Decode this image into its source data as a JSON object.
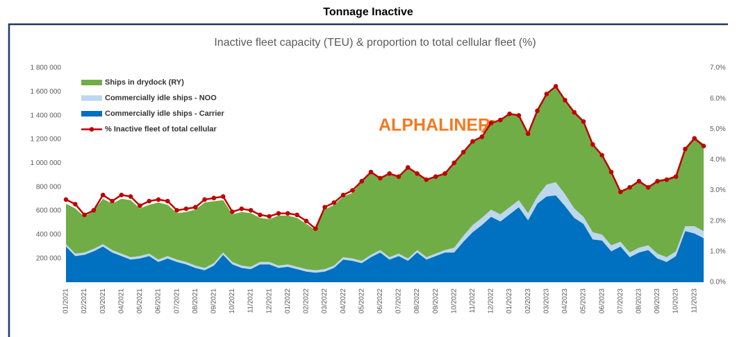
{
  "chart_data": {
    "type": "stacked-area-line",
    "header": "Tonnage Inactive",
    "title": "Inactive fleet capacity (TEU) & proportion to total cellular fleet (%)",
    "logo": "ALPHALINER",
    "categories": [
      "01/2021",
      null,
      "02/2021",
      null,
      "03/2021",
      null,
      "04/2021",
      null,
      "05/2021",
      null,
      "06/2021",
      null,
      "07/2021",
      null,
      "08/2021",
      null,
      "09/2021",
      null,
      "10/2021",
      null,
      "11/2021",
      null,
      "12/2021",
      null,
      "01/2022",
      null,
      "02/2022",
      null,
      "03/2022",
      null,
      "04/2022",
      null,
      "05/2022",
      null,
      "06/2022",
      null,
      "07/2022",
      null,
      "08/2022",
      null,
      "09/2022",
      null,
      "10/2022",
      null,
      "11/2022",
      null,
      "12/2022",
      null,
      "01/2023",
      null,
      "02/2023",
      null,
      "03/2023",
      null,
      "04/2023",
      null,
      "05/2023",
      null,
      "06/2023",
      null,
      "07/2023",
      null,
      "08/2023",
      null,
      "09/2023",
      null,
      "10/2023",
      null,
      "11/2023",
      null
    ],
    "series": [
      {
        "name": "Ships in drydock (RY)",
        "color": "#70ad47",
        "kind": "area",
        "values": [
          340000,
          380000,
          300000,
          320000,
          380000,
          390000,
          460000,
          480000,
          400000,
          410000,
          480000,
          430000,
          390000,
          420000,
          470000,
          550000,
          520000,
          440000,
          400000,
          450000,
          450000,
          370000,
          360000,
          420000,
          410000,
          410000,
          380000,
          340000,
          500000,
          510000,
          510000,
          550000,
          670000,
          690000,
          600000,
          710000,
          650000,
          760000,
          650000,
          660000,
          650000,
          650000,
          710000,
          700000,
          710000,
          690000,
          740000,
          790000,
          790000,
          720000,
          680000,
          740000,
          770000,
          810000,
          800000,
          820000,
          810000,
          740000,
          670000,
          620000,
          430000,
          550000,
          570000,
          490000,
          620000,
          660000,
          640000,
          660000,
          750000,
          730000
        ]
      },
      {
        "name": "Commercially idle ships - NOO",
        "color": "#bdd7ee",
        "kind": "area",
        "values": [
          20000,
          20000,
          20000,
          20000,
          20000,
          20000,
          20000,
          20000,
          20000,
          20000,
          20000,
          20000,
          20000,
          20000,
          20000,
          20000,
          20000,
          20000,
          20000,
          20000,
          20000,
          20000,
          20000,
          20000,
          20000,
          20000,
          20000,
          20000,
          20000,
          20000,
          20000,
          20000,
          20000,
          20000,
          20000,
          20000,
          20000,
          20000,
          20000,
          20000,
          20000,
          20000,
          40000,
          50000,
          60000,
          60000,
          60000,
          60000,
          60000,
          60000,
          60000,
          60000,
          100000,
          110000,
          100000,
          80000,
          60000,
          60000,
          50000,
          50000,
          40000,
          40000,
          40000,
          40000,
          40000,
          40000,
          40000,
          40000,
          60000,
          60000
        ]
      },
      {
        "name": "Commercially idle ships - Carrier",
        "color": "#0070c0",
        "kind": "area",
        "values": [
          300000,
          220000,
          230000,
          260000,
          300000,
          250000,
          220000,
          190000,
          200000,
          220000,
          170000,
          200000,
          170000,
          150000,
          120000,
          100000,
          140000,
          230000,
          150000,
          120000,
          110000,
          150000,
          150000,
          120000,
          130000,
          110000,
          90000,
          80000,
          90000,
          120000,
          190000,
          180000,
          160000,
          210000,
          250000,
          190000,
          220000,
          180000,
          250000,
          190000,
          220000,
          250000,
          250000,
          340000,
          420000,
          480000,
          550000,
          510000,
          570000,
          630000,
          520000,
          660000,
          720000,
          730000,
          640000,
          540000,
          490000,
          360000,
          350000,
          260000,
          300000,
          210000,
          250000,
          270000,
          200000,
          170000,
          220000,
          430000,
          410000,
          370000
        ]
      },
      {
        "name": "% Inactive fleet of total cellular",
        "color": "#c00000",
        "kind": "line",
        "axis": "y2",
        "values": [
          2.7,
          2.55,
          2.2,
          2.35,
          2.85,
          2.65,
          2.85,
          2.8,
          2.5,
          2.65,
          2.7,
          2.65,
          2.35,
          2.4,
          2.45,
          2.7,
          2.75,
          2.8,
          2.3,
          2.4,
          2.35,
          2.2,
          2.15,
          2.25,
          2.25,
          2.2,
          2.0,
          1.75,
          2.45,
          2.6,
          2.85,
          3.0,
          3.3,
          3.6,
          3.4,
          3.55,
          3.45,
          3.75,
          3.55,
          3.35,
          3.45,
          3.55,
          3.9,
          4.25,
          4.6,
          4.75,
          5.2,
          5.3,
          5.5,
          5.45,
          4.85,
          5.6,
          6.15,
          6.4,
          5.95,
          5.55,
          5.25,
          4.5,
          4.15,
          3.6,
          2.95,
          3.1,
          3.3,
          3.1,
          3.3,
          3.35,
          3.45,
          4.35,
          4.7,
          4.45
        ]
      }
    ],
    "ylim": [
      0,
      1800000
    ],
    "yticks": [
      {
        "value": 200000,
        "label": "200 000"
      },
      {
        "value": 400000,
        "label": "400 000"
      },
      {
        "value": 600000,
        "label": "600 000"
      },
      {
        "value": 800000,
        "label": "800 000"
      },
      {
        "value": 1000000,
        "label": "1 000 000"
      },
      {
        "value": 1200000,
        "label": "1 200 000"
      },
      {
        "value": 1400000,
        "label": "1 400 000"
      },
      {
        "value": 1600000,
        "label": "1 600 000"
      },
      {
        "value": 1800000,
        "label": "1 800 000"
      }
    ],
    "y2lim": [
      0,
      7
    ],
    "y2ticks": [
      {
        "value": 0,
        "label": "0.0%"
      },
      {
        "value": 1,
        "label": "1.0%"
      },
      {
        "value": 2,
        "label": "2.0%"
      },
      {
        "value": 3,
        "label": "3.0%"
      },
      {
        "value": 4,
        "label": "4.0%"
      },
      {
        "value": 5,
        "label": "5.0%"
      },
      {
        "value": 6,
        "label": "6.0%"
      },
      {
        "value": 7,
        "label": "7.0%"
      }
    ],
    "grid": false,
    "legend": "upper left"
  }
}
